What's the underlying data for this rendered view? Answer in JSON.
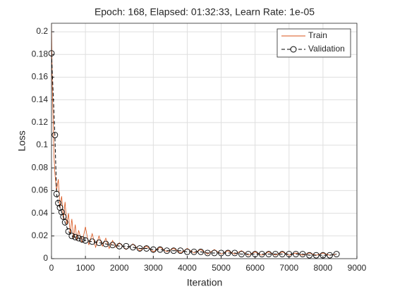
{
  "chart_data": {
    "type": "line",
    "title": "Epoch: 168, Elapsed: 01:32:33, Learn Rate: 1e-05",
    "x_label": "Iteration",
    "y_label": "Loss",
    "xlim": [
      0,
      9000
    ],
    "xticks": [
      0,
      1000,
      2000,
      3000,
      4000,
      5000,
      6000,
      7000,
      8000,
      9000
    ],
    "ylim": [
      0,
      0.2075
    ],
    "yticks": [
      0,
      0.02,
      0.04,
      0.06,
      0.08,
      0.1,
      0.12,
      0.14,
      0.16,
      0.18,
      0.2
    ],
    "grid": true,
    "legend": "northeast",
    "series": [
      {
        "name": "Train",
        "color": "#d95319",
        "marker": "none",
        "x": [
          0,
          25,
          50,
          75,
          100,
          150,
          200,
          250,
          300,
          350,
          400,
          450,
          500,
          550,
          600,
          650,
          700,
          750,
          800,
          900,
          1000,
          1100,
          1200,
          1300,
          1400,
          1500,
          1600,
          1700,
          1800,
          1900,
          2000,
          2200,
          2400,
          2600,
          2800,
          3000,
          3200,
          3400,
          3600,
          3800,
          4000,
          4200,
          4400,
          4600,
          4800,
          5000,
          5200,
          5400,
          5600,
          5800,
          6000,
          6200,
          6400,
          6600,
          6800,
          7000,
          7200,
          7400,
          7600,
          7800,
          8000,
          8200,
          8400
        ],
        "values": [
          0.207,
          0.15,
          0.12,
          0.09,
          0.075,
          0.06,
          0.07,
          0.045,
          0.055,
          0.035,
          0.05,
          0.03,
          0.04,
          0.022,
          0.035,
          0.018,
          0.03,
          0.016,
          0.025,
          0.014,
          0.028,
          0.012,
          0.022,
          0.01,
          0.02,
          0.011,
          0.018,
          0.009,
          0.016,
          0.01,
          0.014,
          0.008,
          0.013,
          0.007,
          0.011,
          0.006,
          0.01,
          0.006,
          0.009,
          0.005,
          0.009,
          0.005,
          0.008,
          0.004,
          0.008,
          0.004,
          0.007,
          0.004,
          0.007,
          0.003,
          0.006,
          0.003,
          0.006,
          0.003,
          0.006,
          0.003,
          0.005,
          0.003,
          0.005,
          0.003,
          0.005,
          0.003,
          0.004
        ]
      },
      {
        "name": "Validation",
        "color": "#000000",
        "marker": "circle",
        "dashed": true,
        "x": [
          0,
          100,
          150,
          200,
          250,
          300,
          350,
          400,
          500,
          600,
          700,
          800,
          900,
          1000,
          1200,
          1400,
          1600,
          1800,
          2000,
          2200,
          2400,
          2600,
          2800,
          3000,
          3200,
          3400,
          3600,
          3800,
          4000,
          4200,
          4400,
          4600,
          4800,
          5000,
          5200,
          5400,
          5600,
          5800,
          6000,
          6200,
          6400,
          6600,
          6800,
          7000,
          7200,
          7400,
          7600,
          7800,
          8000,
          8200,
          8400
        ],
        "values": [
          0.181,
          0.109,
          0.057,
          0.049,
          0.045,
          0.041,
          0.037,
          0.032,
          0.024,
          0.02,
          0.019,
          0.018,
          0.017,
          0.016,
          0.015,
          0.014,
          0.013,
          0.012,
          0.011,
          0.011,
          0.01,
          0.009,
          0.009,
          0.008,
          0.008,
          0.007,
          0.007,
          0.007,
          0.006,
          0.006,
          0.006,
          0.005,
          0.005,
          0.005,
          0.005,
          0.005,
          0.004,
          0.004,
          0.004,
          0.004,
          0.004,
          0.004,
          0.004,
          0.004,
          0.004,
          0.004,
          0.003,
          0.003,
          0.003,
          0.003,
          0.004
        ]
      }
    ]
  }
}
